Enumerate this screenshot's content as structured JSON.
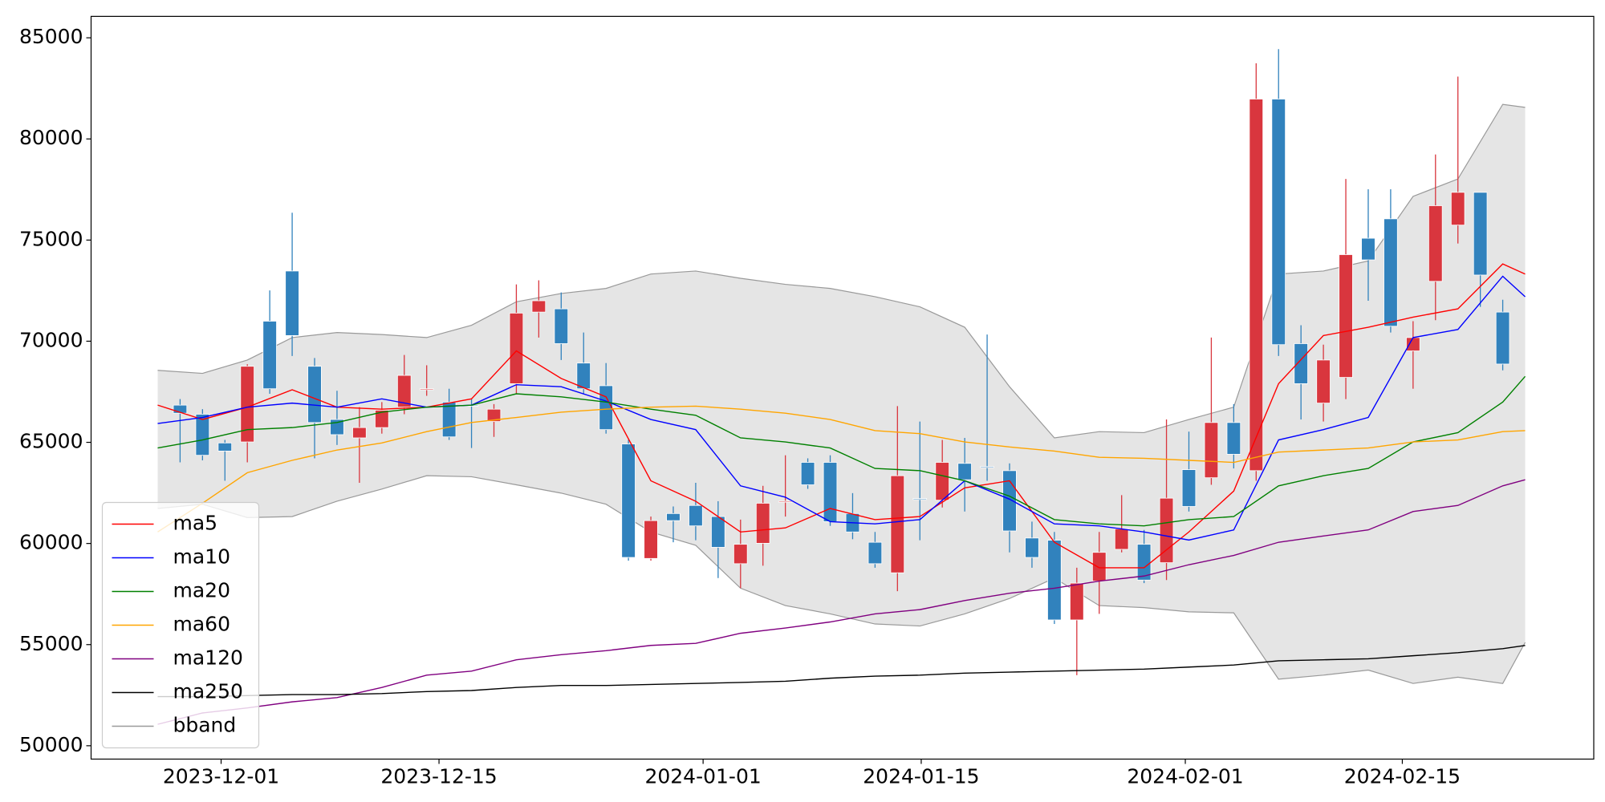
{
  "chart_data": {
    "type": "candlestick",
    "xlim": [
      -3.97,
      63.06
    ],
    "xticks": [
      {
        "value": 1.83,
        "label": "2023-12-01"
      },
      {
        "value": 11.55,
        "label": "2023-12-15"
      },
      {
        "value": 23.33,
        "label": "2024-01-01"
      },
      {
        "value": 33.06,
        "label": "2024-01-15"
      },
      {
        "value": 44.84,
        "label": "2024-02-01"
      },
      {
        "value": 54.52,
        "label": "2024-02-15"
      }
    ],
    "ylim": [
      49340,
      86060
    ],
    "yticks": [
      50000,
      55000,
      60000,
      65000,
      70000,
      75000,
      80000,
      85000
    ],
    "legend": "lower left",
    "up_color": "#d9363e",
    "down_color": "#3182bd",
    "x": [
      0,
      1,
      2,
      3,
      4,
      5,
      6,
      7,
      8,
      9,
      10,
      11,
      12,
      13,
      14,
      15,
      16,
      17,
      18,
      19,
      20,
      21,
      22,
      23,
      24,
      25,
      26,
      27,
      28,
      29,
      30,
      31,
      32,
      33,
      34,
      35,
      36,
      37,
      38,
      39,
      40,
      41,
      42,
      43,
      44,
      45,
      46,
      47,
      48,
      49,
      50,
      51,
      52,
      53,
      54,
      55,
      56,
      57,
      58,
      59
    ],
    "open": [
      66840,
      66390,
      64970,
      65020,
      70990,
      73470,
      68760,
      66130,
      65220,
      65730,
      66740,
      67600,
      66990,
      66840,
      66030,
      67900,
      71440,
      71600,
      68920,
      67800,
      64920,
      59260,
      61480,
      61880,
      61330,
      59000,
      60010,
      62050,
      64010,
      64010,
      61480,
      60060,
      58550,
      62220,
      62140,
      63960,
      63800,
      63600,
      60270,
      60160,
      56220,
      58140,
      59710,
      59960,
      59050,
      63650,
      63250,
      65980,
      63600,
      81970,
      69880,
      66940,
      68210,
      75090,
      76050,
      69520,
      72960,
      75740,
      77360,
      71440
    ],
    "high": [
      67140,
      66640,
      65120,
      68860,
      72510,
      76350,
      69170,
      67550,
      66740,
      66990,
      69320,
      68810,
      67650,
      67140,
      66890,
      72810,
      73010,
      72410,
      70430,
      68920,
      65120,
      61330,
      61830,
      63000,
      62090,
      61180,
      62850,
      64360,
      64210,
      64360,
      62490,
      60570,
      66790,
      66030,
      65120,
      65220,
      70330,
      63960,
      61080,
      60570,
      58800,
      60570,
      62390,
      60670,
      66130,
      65530,
      70180,
      66890,
      83740,
      84440,
      70790,
      69830,
      78020,
      77510,
      77510,
      70990,
      79230,
      83080,
      77360,
      72050
    ],
    "low": [
      64010,
      64110,
      63100,
      64010,
      67400,
      69270,
      64210,
      64870,
      63000,
      65430,
      66390,
      67300,
      65120,
      64720,
      65270,
      67400,
      70180,
      69070,
      67400,
      65430,
      59150,
      59150,
      60060,
      60160,
      58290,
      57790,
      58900,
      61330,
      62700,
      60870,
      60210,
      58800,
      57640,
      60160,
      61780,
      61580,
      63100,
      59560,
      58800,
      56020,
      53490,
      56520,
      59560,
      58040,
      58190,
      61580,
      62900,
      63710,
      63100,
      69270,
      66130,
      66030,
      67140,
      72000,
      70430,
      67650,
      71040,
      74830,
      71700,
      68560
    ],
    "close": [
      66440,
      64360,
      64570,
      68760,
      67650,
      70280,
      65980,
      65380,
      65730,
      66590,
      68310,
      67650,
      65270,
      66800,
      66640,
      71390,
      72000,
      69880,
      67650,
      65630,
      59310,
      61130,
      61130,
      60870,
      59810,
      59960,
      61990,
      62090,
      62900,
      61080,
      60570,
      59000,
      63350,
      62190,
      64010,
      63150,
      63770,
      60620,
      59310,
      56220,
      58040,
      59560,
      60720,
      58190,
      62240,
      61830,
      65980,
      64410,
      81970,
      69830,
      67900,
      69070,
      74280,
      74020,
      70740,
      70180,
      76700,
      77360,
      73270,
      68870
    ],
    "lines": {
      "x": [
        -1,
        1,
        3,
        5,
        7,
        9,
        11,
        13,
        15,
        17,
        19,
        21,
        23,
        25,
        27,
        29,
        31,
        33,
        35,
        37,
        39,
        41,
        43,
        45,
        47,
        49,
        51,
        53,
        55,
        57,
        59,
        60
      ],
      "series": [
        {
          "name": "ma5",
          "color": "#ff0000",
          "values": [
            66840,
            66130,
            66740,
            67600,
            66740,
            66640,
            66740,
            67150,
            69520,
            68160,
            67250,
            63100,
            62090,
            60570,
            60770,
            61730,
            61180,
            61330,
            62750,
            63100,
            60060,
            58800,
            58800,
            60570,
            62590,
            67900,
            70280,
            70690,
            71190,
            71600,
            73820,
            73320
          ]
        },
        {
          "name": "ma10",
          "color": "#0000ff",
          "values": [
            65930,
            66230,
            66740,
            66940,
            66740,
            67150,
            66740,
            66840,
            67850,
            67750,
            67040,
            66130,
            65630,
            62850,
            62290,
            61080,
            60970,
            61180,
            63100,
            62190,
            60970,
            60870,
            60570,
            60170,
            60670,
            65120,
            65630,
            66230,
            70180,
            70580,
            73210,
            72200
          ]
        },
        {
          "name": "ma20",
          "color": "#008000",
          "values": [
            64720,
            65120,
            65630,
            65730,
            65980,
            66490,
            66740,
            66840,
            67400,
            67250,
            66990,
            66640,
            66340,
            65220,
            65020,
            64720,
            63710,
            63600,
            63100,
            62340,
            61180,
            60970,
            60870,
            61180,
            61330,
            62850,
            63350,
            63710,
            65020,
            65480,
            66990,
            68260
          ]
        },
        {
          "name": "ma60",
          "color": "#ffa500",
          "values": [
            60570,
            61990,
            63500,
            64110,
            64620,
            64970,
            65530,
            65980,
            66230,
            66490,
            66640,
            66740,
            66790,
            66640,
            66440,
            66130,
            65580,
            65430,
            65020,
            64770,
            64570,
            64260,
            64210,
            64110,
            64010,
            64520,
            64620,
            64720,
            65020,
            65120,
            65530,
            65580
          ]
        },
        {
          "name": "ma120",
          "color": "#800080",
          "values": [
            51060,
            51620,
            51870,
            52170,
            52380,
            52880,
            53490,
            53690,
            54250,
            54500,
            54700,
            54960,
            55060,
            55560,
            55820,
            56120,
            56520,
            56730,
            57180,
            57540,
            57790,
            58140,
            58390,
            58950,
            59410,
            60060,
            60370,
            60670,
            61580,
            61880,
            62850,
            63150
          ]
        },
        {
          "name": "ma250",
          "color": "#000000",
          "values": [
            52430,
            52430,
            52480,
            52530,
            52530,
            52580,
            52680,
            52730,
            52880,
            52980,
            52980,
            53030,
            53080,
            53130,
            53190,
            53340,
            53440,
            53490,
            53590,
            53640,
            53690,
            53740,
            53790,
            53890,
            53990,
            54200,
            54250,
            54300,
            54450,
            54600,
            54800,
            54960
          ]
        }
      ]
    },
    "band": {
      "name": "bband",
      "color": "#999999",
      "fill": "#e5e5e5",
      "upper": [
        68560,
        68410,
        69070,
        70180,
        70430,
        70330,
        70180,
        70790,
        71950,
        72360,
        72610,
        73320,
        73470,
        73110,
        72810,
        72610,
        72200,
        71700,
        70690,
        67750,
        65220,
        65530,
        65480,
        66130,
        66740,
        73320,
        73470,
        73970,
        77160,
        78020,
        81710,
        81560
      ],
      "lower": [
        61730,
        61940,
        61280,
        61330,
        62090,
        62690,
        63350,
        63300,
        62900,
        62490,
        61940,
        60570,
        59910,
        57790,
        56930,
        56520,
        56020,
        55920,
        56520,
        57280,
        58290,
        56930,
        56830,
        56620,
        56570,
        53290,
        53490,
        53740,
        53080,
        53390,
        53080,
        55110
      ]
    }
  }
}
